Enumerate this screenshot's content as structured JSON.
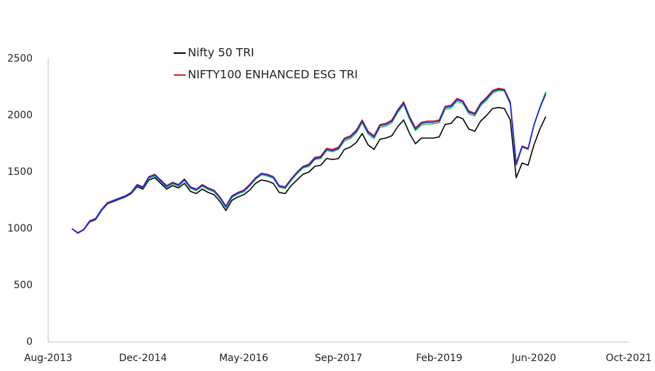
{
  "chart_data": {
    "type": "line",
    "x": [
      "Dec-2013",
      "Jan-2014",
      "Feb-2014",
      "Mar-2014",
      "Apr-2014",
      "May-2014",
      "Jun-2014",
      "Jul-2014",
      "Aug-2014",
      "Sep-2014",
      "Oct-2014",
      "Nov-2014",
      "Dec-2014",
      "Jan-2015",
      "Feb-2015",
      "Mar-2015",
      "Apr-2015",
      "May-2015",
      "Jun-2015",
      "Jul-2015",
      "Aug-2015",
      "Sep-2015",
      "Oct-2015",
      "Nov-2015",
      "Dec-2015",
      "Jan-2016",
      "Feb-2016",
      "Mar-2016",
      "Apr-2016",
      "May-2016",
      "Jun-2016",
      "Jul-2016",
      "Aug-2016",
      "Sep-2016",
      "Oct-2016",
      "Nov-2016",
      "Dec-2016",
      "Jan-2017",
      "Feb-2017",
      "Mar-2017",
      "Apr-2017",
      "May-2017",
      "Jun-2017",
      "Jul-2017",
      "Aug-2017",
      "Sep-2017",
      "Oct-2017",
      "Nov-2017",
      "Dec-2017",
      "Jan-2018",
      "Feb-2018",
      "Mar-2018",
      "Apr-2018",
      "May-2018",
      "Jun-2018",
      "Jul-2018",
      "Aug-2018",
      "Sep-2018",
      "Oct-2018",
      "Nov-2018",
      "Dec-2018",
      "Jan-2019",
      "Feb-2019",
      "Mar-2019",
      "Apr-2019",
      "May-2019",
      "Jun-2019",
      "Jul-2019",
      "Aug-2019",
      "Sep-2019",
      "Oct-2019",
      "Nov-2019",
      "Dec-2019",
      "Jan-2020",
      "Feb-2020",
      "Mar-2020",
      "Apr-2020",
      "May-2020",
      "Jun-2020",
      "Jul-2020",
      "Aug-2020"
    ],
    "series": [
      {
        "name": "Nifty 50 TRI",
        "color": "#000000",
        "values": [
          1000,
          960,
          990,
          1060,
          1080,
          1160,
          1220,
          1240,
          1260,
          1280,
          1310,
          1370,
          1350,
          1430,
          1450,
          1400,
          1350,
          1380,
          1360,
          1400,
          1330,
          1310,
          1350,
          1320,
          1300,
          1240,
          1160,
          1250,
          1280,
          1300,
          1340,
          1400,
          1430,
          1420,
          1400,
          1320,
          1310,
          1380,
          1430,
          1480,
          1500,
          1550,
          1560,
          1620,
          1610,
          1620,
          1700,
          1720,
          1760,
          1840,
          1740,
          1700,
          1790,
          1800,
          1820,
          1900,
          1960,
          1840,
          1750,
          1800,
          1800,
          1800,
          1810,
          1920,
          1930,
          1990,
          1970,
          1880,
          1860,
          1950,
          2000,
          2060,
          2070,
          2060,
          1960,
          1450,
          1580,
          1560,
          1740,
          1880,
          1990
        ]
      },
      {
        "name": "NIFTY100 ENHANCED ESG TRI",
        "color": "#e02020",
        "values": [
          1000,
          965,
          995,
          1070,
          1090,
          1170,
          1230,
          1250,
          1270,
          1290,
          1320,
          1390,
          1370,
          1460,
          1480,
          1430,
          1380,
          1410,
          1390,
          1440,
          1370,
          1350,
          1390,
          1360,
          1340,
          1280,
          1200,
          1290,
          1320,
          1340,
          1390,
          1450,
          1490,
          1480,
          1460,
          1380,
          1370,
          1440,
          1500,
          1550,
          1570,
          1630,
          1640,
          1710,
          1700,
          1720,
          1800,
          1820,
          1870,
          1960,
          1860,
          1820,
          1920,
          1930,
          1960,
          2050,
          2120,
          1990,
          1890,
          1940,
          1950,
          1950,
          1960,
          2080,
          2090,
          2150,
          2130,
          2040,
          2020,
          2110,
          2160,
          2220,
          2240,
          2230,
          2120,
          1580,
          1730,
          1710,
          1920,
          2070,
          2200
        ]
      },
      {
        "color": "#22c040",
        "values": [
          1000,
          960,
          990,
          1065,
          1085,
          1165,
          1225,
          1245,
          1265,
          1285,
          1315,
          1380,
          1360,
          1445,
          1465,
          1415,
          1365,
          1395,
          1375,
          1425,
          1355,
          1335,
          1375,
          1345,
          1325,
          1265,
          1185,
          1275,
          1305,
          1325,
          1375,
          1435,
          1475,
          1465,
          1445,
          1365,
          1355,
          1425,
          1485,
          1535,
          1550,
          1610,
          1620,
          1690,
          1680,
          1700,
          1775,
          1795,
          1845,
          1935,
          1835,
          1795,
          1895,
          1905,
          1935,
          2025,
          2095,
          1965,
          1865,
          1915,
          1925,
          1925,
          1935,
          2055,
          2065,
          2125,
          2105,
          2015,
          1995,
          2085,
          2135,
          2195,
          2220,
          2215,
          2100,
          1560,
          1720,
          1700,
          1915,
          2075,
          2210
        ]
      },
      {
        "color": "#1a1aff",
        "values": [
          1000,
          962,
          992,
          1068,
          1088,
          1168,
          1228,
          1248,
          1268,
          1288,
          1318,
          1385,
          1365,
          1455,
          1475,
          1425,
          1375,
          1405,
          1385,
          1435,
          1365,
          1345,
          1385,
          1355,
          1335,
          1275,
          1195,
          1285,
          1315,
          1335,
          1385,
          1445,
          1485,
          1475,
          1455,
          1375,
          1365,
          1435,
          1495,
          1545,
          1560,
          1620,
          1630,
          1700,
          1690,
          1710,
          1790,
          1810,
          1860,
          1950,
          1850,
          1810,
          1910,
          1920,
          1950,
          2040,
          2110,
          1980,
          1880,
          1930,
          1940,
          1940,
          1950,
          2070,
          2080,
          2140,
          2120,
          2030,
          2010,
          2100,
          2150,
          2210,
          2230,
          2225,
          2110,
          1570,
          1725,
          1705,
          1915,
          2065,
          2190
        ]
      }
    ],
    "xlim": [
      "Aug-2013",
      "Oct-2021"
    ],
    "xticks": [
      "Aug-2013",
      "Dec-2014",
      "May-2016",
      "Sep-2017",
      "Feb-2019",
      "Jun-2020",
      "Oct-2021"
    ],
    "ylim": [
      0,
      2500
    ],
    "yticks": [
      0,
      500,
      1000,
      1500,
      2000,
      2500
    ],
    "grid": false,
    "legend": "top"
  }
}
